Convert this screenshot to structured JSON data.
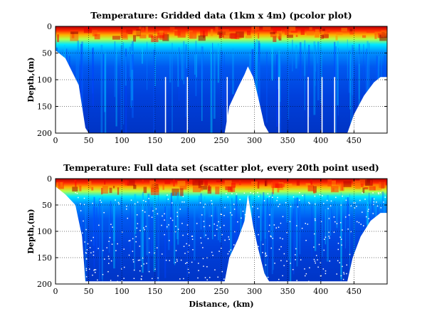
{
  "chart_data": [
    {
      "type": "heatmap",
      "title": "Temperature: Gridded data (1km x 4m) (pcolor plot)",
      "xlabel": "",
      "ylabel": "Depth,(m)",
      "xlim": [
        0,
        500
      ],
      "ylim": [
        0,
        200
      ],
      "y_reversed": true,
      "xticks": [
        0,
        50,
        100,
        150,
        200,
        250,
        300,
        350,
        400,
        450
      ],
      "yticks": [
        0,
        50,
        100,
        150,
        200
      ],
      "grid": true,
      "colormap": "jet",
      "data_gaps_km": [
        165,
        198,
        258,
        336,
        380,
        401,
        420
      ],
      "bottom_profile": {
        "x": [
          0,
          15,
          35,
          45,
          50,
          60,
          100,
          200,
          255,
          262,
          275,
          285,
          290,
          298,
          305,
          315,
          322,
          330,
          340,
          380,
          440,
          450,
          465,
          480,
          490,
          498
        ],
        "y": [
          45,
          60,
          110,
          190,
          200,
          200,
          200,
          200,
          200,
          150,
          115,
          90,
          75,
          95,
          130,
          185,
          200,
          200,
          200,
          200,
          200,
          165,
          130,
          105,
          95,
          95
        ]
      }
    },
    {
      "type": "scatter",
      "title": "Temperature: Full data set (scatter plot, every 20th point used)",
      "xlabel": "Distance, (km)",
      "ylabel": "Depth,(m)",
      "xlim": [
        0,
        500
      ],
      "ylim": [
        0,
        200
      ],
      "y_reversed": true,
      "xticks": [
        0,
        50,
        100,
        150,
        200,
        250,
        300,
        350,
        400,
        450
      ],
      "yticks": [
        0,
        50,
        100,
        150,
        200
      ],
      "grid": true,
      "colormap": "jet",
      "bottom_profile": {
        "x": [
          0,
          15,
          30,
          40,
          45,
          60,
          100,
          200,
          255,
          262,
          275,
          285,
          290,
          298,
          305,
          315,
          322,
          330,
          340,
          380,
          440,
          448,
          460,
          475,
          490,
          498
        ],
        "y": [
          15,
          30,
          50,
          110,
          195,
          195,
          195,
          195,
          195,
          150,
          115,
          80,
          30,
          90,
          130,
          180,
          195,
          195,
          195,
          195,
          195,
          150,
          110,
          80,
          65,
          65
        ]
      }
    }
  ]
}
